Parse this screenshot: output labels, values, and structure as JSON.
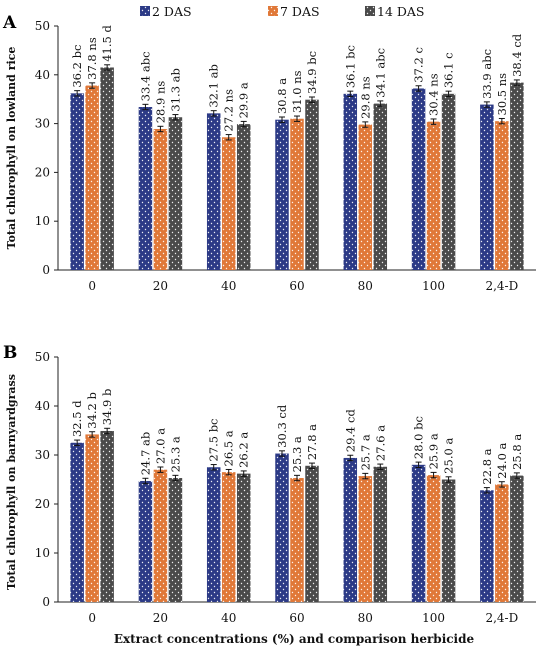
{
  "legend": [
    {
      "name": "2 DAS",
      "color": "#2c3a86"
    },
    {
      "name": "7 DAS",
      "color": "#e07838"
    },
    {
      "name": "14 DAS",
      "color": "#4a4a4a"
    }
  ],
  "x_axis_title": "Extract concentrations (%) and comparison herbicide",
  "chart_data": [
    {
      "type": "bar",
      "panel": "A",
      "ylabel": "Total chlorophyll on lowland rice",
      "xlabel": "",
      "ylim": [
        0,
        50
      ],
      "yticks": [
        0,
        10,
        20,
        30,
        40,
        50
      ],
      "categories": [
        "0",
        "20",
        "40",
        "60",
        "80",
        "100",
        "2,4-D"
      ],
      "series": [
        {
          "name": "2 DAS",
          "values": [
            36.2,
            33.4,
            32.1,
            30.8,
            36.1,
            37.2,
            33.9
          ],
          "labels": [
            "36.2 bc",
            "33.4 abc",
            "32.1 ab",
            "30.8 a",
            "36.1 bc",
            "37.2 c",
            "33.9 abc"
          ]
        },
        {
          "name": "7 DAS",
          "values": [
            37.8,
            28.9,
            27.2,
            31.0,
            29.8,
            30.4,
            30.5
          ],
          "labels": [
            "37.8 ns",
            "28.9 ns",
            "27.2 ns",
            "31.0 ns",
            "29.8 ns",
            "30.4 ns",
            "30.5 ns"
          ]
        },
        {
          "name": "14 DAS",
          "values": [
            41.5,
            31.3,
            29.9,
            34.9,
            34.1,
            36.1,
            38.4
          ],
          "labels": [
            "41.5 d",
            "31.3 ab",
            "29.9 a",
            "34.9 bc",
            "34.1 abc",
            "36.1 c",
            "38.4 cd"
          ]
        }
      ]
    },
    {
      "type": "bar",
      "panel": "B",
      "ylabel": "Total chlorophyll on barnyardgrass",
      "xlabel": "Extract concentrations (%) and comparison herbicide",
      "ylim": [
        0,
        50
      ],
      "yticks": [
        0,
        10,
        20,
        30,
        40,
        50
      ],
      "categories": [
        "0",
        "20",
        "40",
        "60",
        "80",
        "100",
        "2,4-D"
      ],
      "series": [
        {
          "name": "2 DAS",
          "values": [
            32.5,
            24.7,
            27.5,
            30.3,
            29.4,
            28.0,
            22.8
          ],
          "labels": [
            "32.5 d",
            "24.7 ab",
            "27.5 bc",
            "30.3 cd",
            "29.4 cd",
            "28.0 bc",
            "22.8 a"
          ]
        },
        {
          "name": "7 DAS",
          "values": [
            34.2,
            27.0,
            26.5,
            25.3,
            25.7,
            25.9,
            24.0
          ],
          "labels": [
            "34.2 b",
            "27.0 a",
            "26.5 a",
            "25.3 a",
            "25.7 a",
            "25.9 a",
            "24.0 a"
          ]
        },
        {
          "name": "14 DAS",
          "values": [
            34.9,
            25.3,
            26.2,
            27.8,
            27.6,
            25.0,
            25.8
          ],
          "labels": [
            "34.9 b",
            "25.3 a",
            "26.2 a",
            "27.8 a",
            "27.6 a",
            "25.0 a",
            "25.8 a"
          ]
        }
      ]
    }
  ]
}
